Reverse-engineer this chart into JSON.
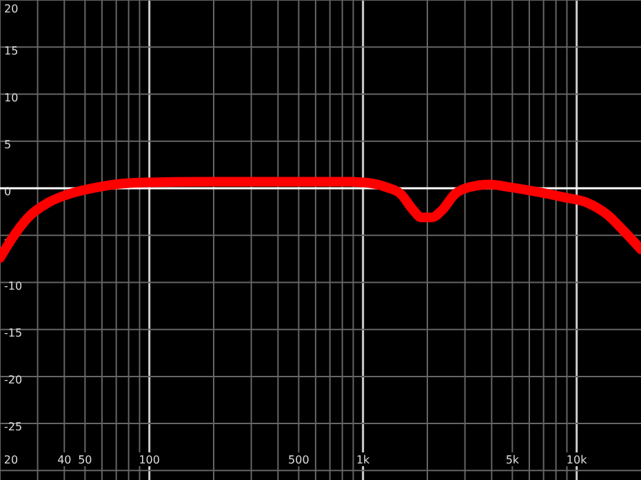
{
  "chart_data": {
    "type": "line",
    "log": "x",
    "grid": true,
    "x": [
      20,
      23.3,
      27.1,
      33.8,
      42.3,
      56.9,
      88.8,
      186,
      392,
      825,
      1030,
      1290,
      1500,
      1730,
      1870,
      2100,
      2330,
      2700,
      3130,
      3920,
      4900,
      6600,
      8900,
      11100,
      13900,
      16700,
      20000
    ],
    "series": [
      {
        "color": "#ff0000",
        "values": [
          -7.4,
          -5.0,
          -3.1,
          -1.5,
          -0.6,
          0.1,
          0.6,
          0.7,
          0.7,
          0.7,
          0.6,
          0.1,
          -0.6,
          -2.4,
          -3.1,
          -3.1,
          -2.4,
          -0.6,
          0.1,
          0.4,
          0.1,
          -0.4,
          -1.0,
          -1.5,
          -2.8,
          -4.6,
          -6.5
        ]
      }
    ],
    "xlim": [
      20,
      20000
    ],
    "xticks": [
      20,
      {
        "value": 30,
        "label": null
      },
      40,
      50,
      {
        "value": 60,
        "label": null
      },
      {
        "value": 70,
        "label": null
      },
      {
        "value": 80,
        "label": null
      },
      {
        "value": 90,
        "label": null
      },
      100,
      {
        "value": 200,
        "label": null
      },
      {
        "value": 300,
        "label": null
      },
      {
        "value": 400,
        "label": null
      },
      500,
      {
        "value": 600,
        "label": null
      },
      {
        "value": 700,
        "label": null
      },
      {
        "value": 800,
        "label": null
      },
      {
        "value": 900,
        "label": null
      },
      {
        "value": 1000,
        "label": "1k"
      },
      {
        "value": 2000,
        "label": null
      },
      {
        "value": 3000,
        "label": null
      },
      {
        "value": 4000,
        "label": null
      },
      {
        "value": 5000,
        "label": "5k"
      },
      {
        "value": 6000,
        "label": null
      },
      {
        "value": 7000,
        "label": null
      },
      {
        "value": 8000,
        "label": null
      },
      {
        "value": 9000,
        "label": null
      },
      {
        "value": 10000,
        "label": "10k"
      }
    ],
    "ylim": [
      -31,
      20
    ],
    "yticks": [
      20,
      15,
      10,
      5,
      0,
      -5,
      -10,
      -15,
      -20,
      -25,
      {
        "value": -30,
        "label": null
      }
    ],
    "ref_lines": [
      {
        "axis": "y",
        "value": 0,
        "color": "#ffffff"
      }
    ],
    "marker": "none",
    "line_style": "solid"
  }
}
